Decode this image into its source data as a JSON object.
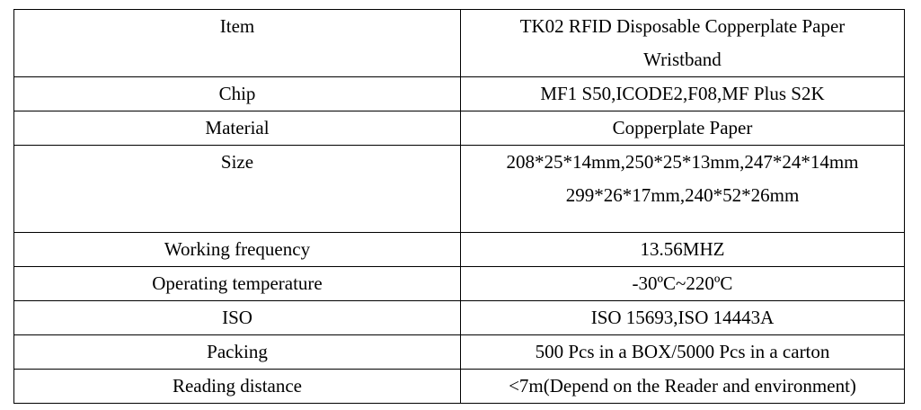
{
  "table": {
    "rows": [
      {
        "label": "Item",
        "value_lines": [
          "TK02 RFID Disposable Copperplate Paper",
          "Wristband"
        ]
      },
      {
        "label": "Chip",
        "value": "MF1 S50,ICODE2,F08,MF Plus S2K"
      },
      {
        "label": "Material",
        "value": "Copperplate Paper"
      },
      {
        "label": "Size",
        "value_lines": [
          "208*25*14mm,250*25*13mm,247*24*14mm",
          "299*26*17mm,240*52*26mm"
        ]
      },
      {
        "label": "Working frequency",
        "value": "13.56MHZ"
      },
      {
        "label": "Operating temperature",
        "value": "-30ºC~220ºC"
      },
      {
        "label": "ISO",
        "value": "ISO 15693,ISO 14443A"
      },
      {
        "label": "Packing",
        "value": "500 Pcs in a BOX/5000 Pcs in a carton"
      },
      {
        "label": "Reading distance",
        "value": "<7m(Depend on the Reader and environment)"
      }
    ]
  }
}
